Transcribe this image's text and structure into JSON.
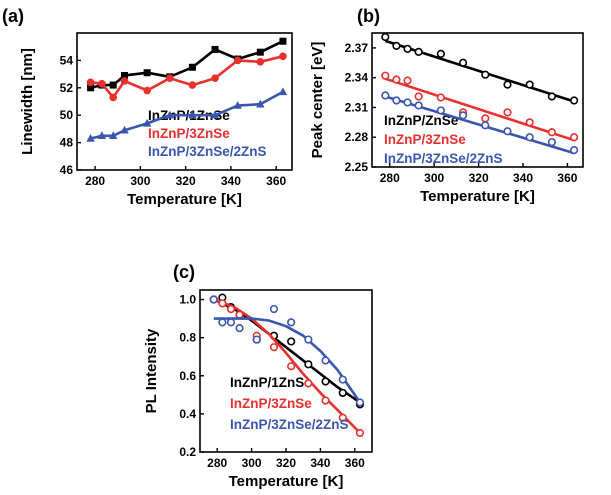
{
  "chart_data": [
    {
      "panel": "(a)",
      "type": "line",
      "xlabel": "Temperature [K]",
      "ylabel": "Linewidth [nm]",
      "xlim": [
        272,
        367
      ],
      "ylim": [
        46,
        56
      ],
      "xticks": [
        280,
        300,
        320,
        340,
        360
      ],
      "yticks": [
        46,
        48,
        50,
        52,
        54
      ],
      "legend_position": "bottom-left",
      "series": [
        {
          "name": "InZnP/1ZnSe",
          "color": "#000000",
          "marker": "square",
          "style": "line-markers",
          "x": [
            278,
            283,
            288,
            293,
            303,
            313,
            323,
            333,
            343,
            353,
            363
          ],
          "y": [
            52.0,
            52.2,
            52.2,
            52.9,
            53.1,
            52.8,
            53.5,
            54.8,
            54.1,
            54.6,
            55.4
          ]
        },
        {
          "name": "InZnP/3ZnSe",
          "color": "#e8302e",
          "marker": "circle",
          "style": "line-markers",
          "x": [
            278,
            283,
            288,
            293,
            303,
            313,
            323,
            333,
            343,
            353,
            363
          ],
          "y": [
            52.4,
            52.3,
            51.3,
            52.5,
            51.8,
            52.7,
            52.2,
            52.7,
            54.0,
            53.9,
            54.3
          ]
        },
        {
          "name": "InZnP/3ZnSe/2ZnS",
          "color": "#3a56b0",
          "marker": "triangle",
          "style": "line-markers",
          "x": [
            278,
            283,
            288,
            293,
            303,
            313,
            323,
            333,
            343,
            353,
            363
          ],
          "y": [
            48.3,
            48.5,
            48.5,
            48.9,
            49.4,
            50.0,
            50.0,
            50.0,
            50.7,
            50.8,
            51.7
          ]
        }
      ]
    },
    {
      "panel": "(b)",
      "type": "scatter",
      "xlabel": "Temperature [K]",
      "ylabel": "Peak center [eV]",
      "xlim": [
        272,
        367
      ],
      "ylim": [
        2.25,
        2.385
      ],
      "xticks": [
        280,
        300,
        320,
        340,
        360
      ],
      "yticks": [
        2.25,
        2.28,
        2.31,
        2.34,
        2.37
      ],
      "legend_position": "bottom-left",
      "series": [
        {
          "name": "InZnP/ZnSe",
          "color": "#000000",
          "marker": "open-circle",
          "style": "markers-fit",
          "x": [
            278,
            283,
            288,
            293,
            303,
            313,
            323,
            333,
            343,
            353,
            363
          ],
          "y": [
            2.381,
            2.372,
            2.369,
            2.366,
            2.364,
            2.355,
            2.343,
            2.333,
            2.333,
            2.321,
            2.317
          ],
          "fit": [
            [
              278,
              2.377
            ],
            [
              363,
              2.316
            ]
          ]
        },
        {
          "name": "InZnP/3ZnSe",
          "color": "#e8302e",
          "marker": "open-circle",
          "style": "markers-fit",
          "x": [
            278,
            283,
            288,
            293,
            303,
            313,
            323,
            333,
            343,
            353,
            363
          ],
          "y": [
            2.342,
            2.338,
            2.337,
            2.321,
            2.32,
            2.305,
            2.299,
            2.305,
            2.295,
            2.285,
            2.28
          ],
          "fit": [
            [
              278,
              2.339
            ],
            [
              363,
              2.277
            ]
          ]
        },
        {
          "name": "InZnP/3ZnSe/2ZnS",
          "color": "#3a56b0",
          "marker": "open-circle",
          "style": "markers-fit",
          "x": [
            278,
            283,
            288,
            293,
            303,
            313,
            323,
            333,
            343,
            353,
            363
          ],
          "y": [
            2.322,
            2.317,
            2.315,
            2.312,
            2.307,
            2.302,
            2.292,
            2.286,
            2.28,
            2.275,
            2.267
          ],
          "fit": [
            [
              278,
              2.321
            ],
            [
              363,
              2.264
            ]
          ]
        }
      ]
    },
    {
      "panel": "(c)",
      "type": "scatter",
      "xlabel": "Temperature [K]",
      "ylabel": "PL Intensity",
      "xlim": [
        270,
        370
      ],
      "ylim": [
        0.2,
        1.05
      ],
      "xticks": [
        280,
        300,
        320,
        340,
        360
      ],
      "yticks": [
        0.2,
        0.4,
        0.6,
        0.8,
        1.0
      ],
      "legend_position": "bottom-left",
      "series": [
        {
          "name": "InZnP/1ZnSe",
          "color": "#000000",
          "marker": "open-circle",
          "style": "markers-fit",
          "x": [
            278,
            283,
            288,
            293,
            303,
            313,
            323,
            333,
            343,
            353,
            363
          ],
          "y": [
            1.0,
            1.01,
            0.96,
            0.92,
            0.79,
            0.81,
            0.78,
            0.66,
            0.57,
            0.51,
            0.45
          ],
          "fit": [
            [
              278,
              1.0
            ],
            [
              290,
              0.95
            ],
            [
              300,
              0.89
            ],
            [
              310,
              0.82
            ],
            [
              320,
              0.75
            ],
            [
              330,
              0.68
            ],
            [
              340,
              0.61
            ],
            [
              350,
              0.54
            ],
            [
              363,
              0.46
            ]
          ]
        },
        {
          "name": "InZnP/3ZnSe",
          "color": "#e8302e",
          "marker": "open-circle",
          "style": "markers-fit",
          "x": [
            278,
            283,
            288,
            293,
            303,
            313,
            323,
            333,
            343,
            353,
            363
          ],
          "y": [
            1.0,
            0.98,
            0.95,
            0.92,
            0.81,
            0.75,
            0.65,
            0.56,
            0.47,
            0.38,
            0.3
          ],
          "fit": [
            [
              278,
              1.0
            ],
            [
              290,
              0.96
            ],
            [
              300,
              0.9
            ],
            [
              310,
              0.82
            ],
            [
              320,
              0.72
            ],
            [
              330,
              0.61
            ],
            [
              340,
              0.51
            ],
            [
              350,
              0.42
            ],
            [
              363,
              0.3
            ]
          ]
        },
        {
          "name": "InZnP/3ZnSe/2ZnS",
          "color": "#3a56b0",
          "marker": "open-circle",
          "style": "markers-fit",
          "x": [
            278,
            283,
            288,
            293,
            303,
            313,
            323,
            333,
            343,
            353,
            363
          ],
          "y": [
            1.0,
            0.88,
            0.88,
            0.85,
            0.79,
            0.95,
            0.88,
            0.79,
            0.68,
            0.58,
            0.46
          ],
          "fit": [
            [
              278,
              0.9
            ],
            [
              290,
              0.9
            ],
            [
              300,
              0.9
            ],
            [
              310,
              0.89
            ],
            [
              320,
              0.86
            ],
            [
              330,
              0.81
            ],
            [
              340,
              0.73
            ],
            [
              350,
              0.63
            ],
            [
              363,
              0.46
            ]
          ]
        }
      ]
    }
  ]
}
